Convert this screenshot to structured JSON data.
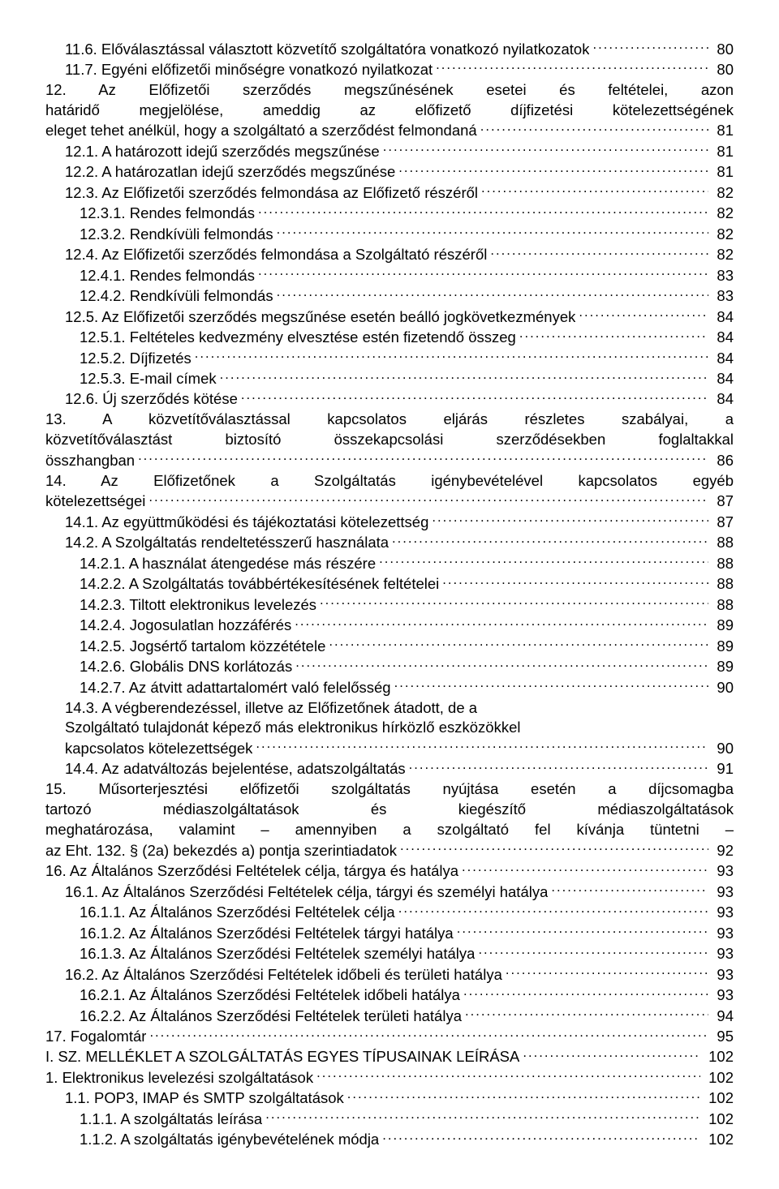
{
  "font_family": "Arial",
  "font_size_pt": 14,
  "color": "#000000",
  "background": "#ffffff",
  "entries": [
    {
      "level": 1,
      "wrap": false,
      "text": "11.6.  Előválasztással választott közvetítő szolgáltatóra vonatkozó nyilatkozatok",
      "page": "80"
    },
    {
      "level": 1,
      "wrap": false,
      "text": "11.7.  Egyéni előfizetői minőségre vonatkozó nyilatkozat",
      "page": "80"
    },
    {
      "level": 0,
      "wrap": true,
      "justify": true,
      "text": "12. Az Előfizetői szerződés megszűnésének esetei és feltételei, azon határidő megjelölése, ameddig az előfizető díjfizetési kötelezettségének eleget tehet anélkül, hogy a szolgáltató a szerződést felmondaná",
      "page": "81"
    },
    {
      "level": 1,
      "wrap": false,
      "text": "12.1.  A határozott idejű szerződés megszűnése",
      "page": "81"
    },
    {
      "level": 1,
      "wrap": false,
      "text": "12.2.  A határozatlan idejű szerződés megszűnése",
      "page": "81"
    },
    {
      "level": 1,
      "wrap": false,
      "text": "12.3.  Az Előfizetői szerződés felmondása az Előfizető részéről",
      "page": "82"
    },
    {
      "level": 2,
      "wrap": false,
      "text": "12.3.1. Rendes felmondás",
      "page": "82"
    },
    {
      "level": 2,
      "wrap": false,
      "text": "12.3.2. Rendkívüli felmondás",
      "page": "82"
    },
    {
      "level": 1,
      "wrap": false,
      "text": "12.4.  Az Előfizetői szerződés felmondása a Szolgáltató részéről",
      "page": "82"
    },
    {
      "level": 2,
      "wrap": false,
      "text": "12.4.1. Rendes felmondás",
      "page": "83"
    },
    {
      "level": 2,
      "wrap": false,
      "text": "12.4.2. Rendkívüli felmondás",
      "page": "83"
    },
    {
      "level": 1,
      "wrap": false,
      "text": "12.5.  Az Előfizetői szerződés megszűnése esetén beálló jogkövetkezmények",
      "page": "84"
    },
    {
      "level": 2,
      "wrap": false,
      "text": "12.5.1. Feltételes kedvezmény elvesztése estén fizetendő összeg",
      "page": "84"
    },
    {
      "level": 2,
      "wrap": false,
      "text": "12.5.2. Díjfizetés",
      "page": "84"
    },
    {
      "level": 2,
      "wrap": false,
      "text": "12.5.3. E-mail címek",
      "page": "84"
    },
    {
      "level": 1,
      "wrap": false,
      "text": "12.6.  Új szerződés kötése",
      "page": "84"
    },
    {
      "level": 0,
      "wrap": true,
      "justify": true,
      "text": "13. A közvetítőválasztással kapcsolatos eljárás részletes szabályai, a közvetítőválasztást biztosító összekapcsolási szerződésekben foglaltakkal összhangban",
      "page": "86"
    },
    {
      "level": 0,
      "wrap": true,
      "justify": true,
      "text": "14. Az Előfizetőnek a Szolgáltatás igénybevételével kapcsolatos egyéb kötelezettségei",
      "page": "87"
    },
    {
      "level": 1,
      "wrap": false,
      "text": "14.1.  Az együttműködési és tájékoztatási kötelezettség",
      "page": "87"
    },
    {
      "level": 1,
      "wrap": false,
      "text": "14.2.  A Szolgáltatás rendeltetésszerű használata",
      "page": "88"
    },
    {
      "level": 2,
      "wrap": false,
      "text": "14.2.1. A használat átengedése más részére",
      "page": "88"
    },
    {
      "level": 2,
      "wrap": false,
      "text": "14.2.2. A Szolgáltatás továbbértékesítésének feltételei",
      "page": "88"
    },
    {
      "level": 2,
      "wrap": false,
      "text": "14.2.3. Tiltott elektronikus levelezés",
      "page": "88"
    },
    {
      "level": 2,
      "wrap": false,
      "text": "14.2.4. Jogosulatlan hozzáférés",
      "page": "89"
    },
    {
      "level": 2,
      "wrap": false,
      "text": "14.2.5. Jogsértő tartalom közzététele",
      "page": "89"
    },
    {
      "level": 2,
      "wrap": false,
      "text": "14.2.6. Globális DNS korlátozás",
      "page": "89"
    },
    {
      "level": 2,
      "wrap": false,
      "text": "14.2.7. Az átvitt adattartalomért való felelősség",
      "page": "90"
    },
    {
      "level": 1,
      "wrap": true,
      "text": "14.3.  A végberendezéssel, illetve az Előfizetőnek átadott, de a Szolgáltató tulajdonát képező más elektronikus hírközlő eszközökkel kapcsolatos kötelezettségek",
      "page": "90"
    },
    {
      "level": 1,
      "wrap": false,
      "text": "14.4.  Az adatváltozás bejelentése, adatszolgáltatás",
      "page": "91"
    },
    {
      "level": 0,
      "wrap": true,
      "justify": true,
      "text": "15. Műsorterjesztési előfizetői szolgáltatás nyújtása esetén a díjcsomagba tartozó médiaszolgáltatások és kiegészítő médiaszolgáltatások meghatározása, valamint – amennyiben a szolgáltató fel kívánja tüntetni – az Eht. 132. § (2a) bekezdés a) pontja szerintiadatok",
      "page": "92"
    },
    {
      "level": 0,
      "wrap": false,
      "text": "16. Az Általános Szerződési Feltételek célja, tárgya és hatálya",
      "page": "93"
    },
    {
      "level": 1,
      "wrap": false,
      "text": "16.1.  Az Általános Szerződési Feltételek célja, tárgyi és személyi hatálya",
      "page": "93"
    },
    {
      "level": 2,
      "wrap": false,
      "text": "16.1.1. Az Általános Szerződési Feltételek célja",
      "page": "93"
    },
    {
      "level": 2,
      "wrap": false,
      "text": "16.1.2. Az Általános Szerződési Feltételek tárgyi hatálya",
      "page": "93"
    },
    {
      "level": 2,
      "wrap": false,
      "text": "16.1.3. Az Általános Szerződési Feltételek személyi hatálya",
      "page": "93"
    },
    {
      "level": 1,
      "wrap": false,
      "text": "16.2.  Az Általános Szerződési Feltételek időbeli és területi hatálya",
      "page": "93"
    },
    {
      "level": 2,
      "wrap": false,
      "text": "16.2.1. Az Általános Szerződési Feltételek időbeli hatálya",
      "page": "93"
    },
    {
      "level": 2,
      "wrap": false,
      "text": "16.2.2. Az Általános Szerződési Feltételek területi hatálya",
      "page": "94"
    },
    {
      "level": 0,
      "wrap": false,
      "text": "17. Fogalomtár",
      "page": "95"
    },
    {
      "level": 0,
      "wrap": false,
      "text": "I. SZ. MELLÉKLET A SZOLGÁLTATÁS EGYES TÍPUSAINAK LEÍRÁSA",
      "page": "102"
    },
    {
      "level": 0,
      "wrap": false,
      "text": "1.   Elektronikus levelezési szolgáltatások",
      "page": "102"
    },
    {
      "level": 1,
      "wrap": false,
      "text": "1.1.    POP3, IMAP és SMTP szolgáltatások",
      "page": "102"
    },
    {
      "level": 2,
      "wrap": false,
      "text": "1.1.1.  A szolgáltatás leírása",
      "page": "102"
    },
    {
      "level": 2,
      "wrap": false,
      "text": "1.1.2.  A szolgáltatás igénybevételének módja",
      "page": "102"
    }
  ]
}
